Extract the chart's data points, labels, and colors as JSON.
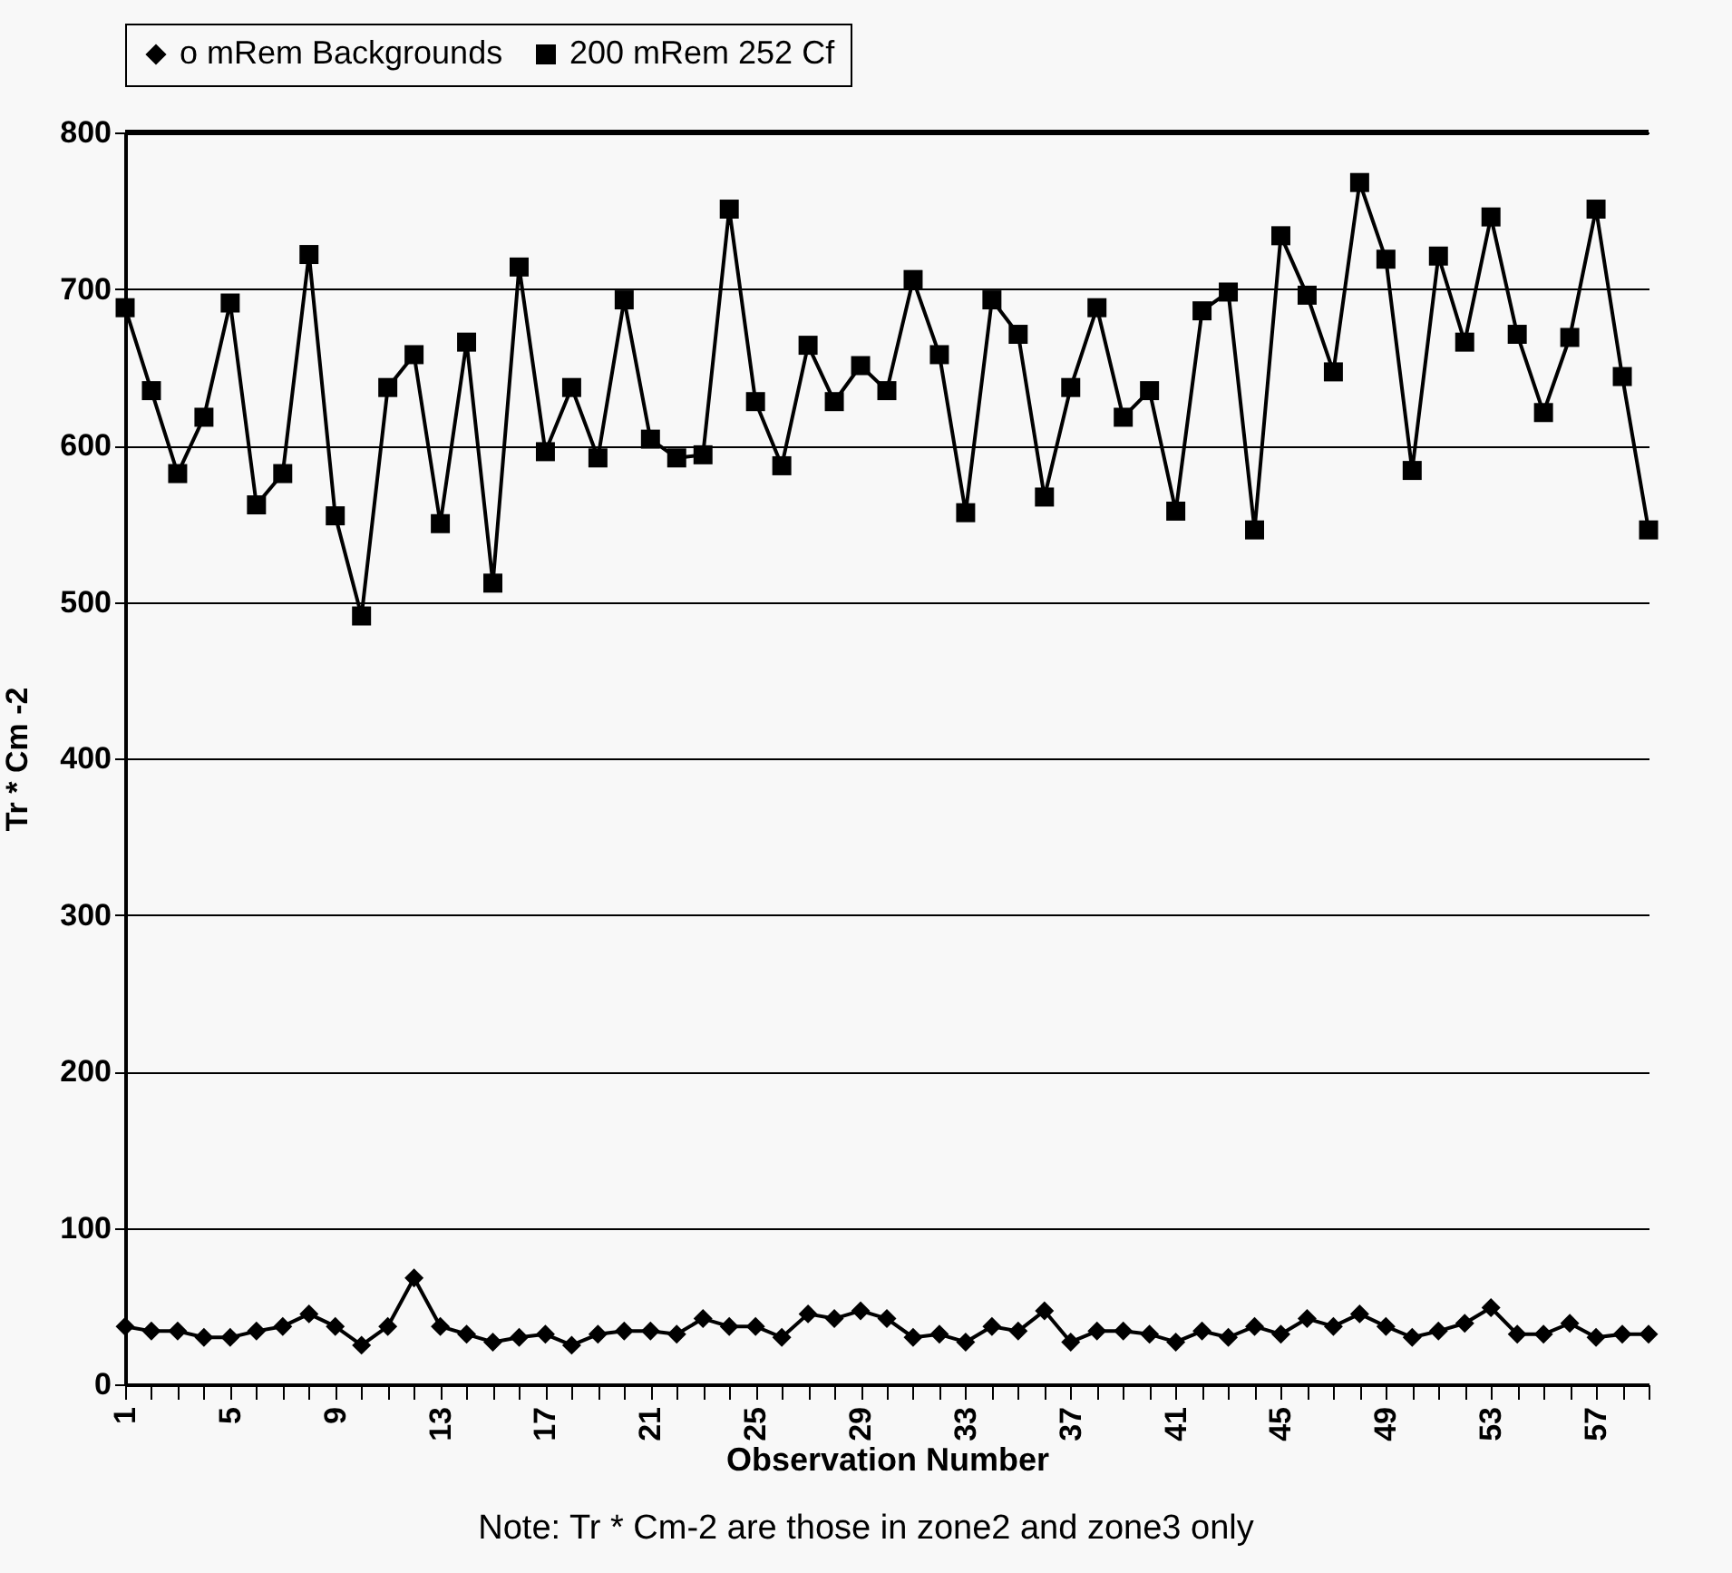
{
  "chart_data": {
    "type": "line",
    "xlabel": "Observation Number",
    "ylabel": "Tr * Cm -2",
    "annotations": [
      "Note: Tr * Cm-2 are those in zone2 and zone3 only"
    ],
    "categories": [
      "1",
      null,
      null,
      null,
      "5",
      null,
      null,
      null,
      "9",
      null,
      null,
      null,
      "13",
      null,
      null,
      null,
      "17",
      null,
      null,
      null,
      "21",
      null,
      null,
      null,
      "25",
      null,
      null,
      null,
      "29",
      null,
      null,
      null,
      "33",
      null,
      null,
      null,
      "37",
      null,
      null,
      null,
      "41",
      null,
      null,
      null,
      "45",
      null,
      null,
      null,
      "49",
      null,
      null,
      null,
      "53",
      null,
      null,
      null,
      "57",
      null,
      null
    ],
    "series": [
      {
        "name": "o mRem Backgrounds",
        "color": "#000000",
        "marker": "diamond",
        "values": [
          37,
          34,
          34,
          30,
          30,
          34,
          37,
          45,
          37,
          25,
          37,
          68,
          37,
          32,
          27,
          30,
          32,
          25,
          32,
          34,
          34,
          32,
          42,
          37,
          37,
          30,
          45,
          42,
          47,
          42,
          30,
          32,
          27,
          37,
          34,
          47,
          27,
          34,
          34,
          32,
          27,
          34,
          30,
          37,
          32,
          42,
          37,
          45,
          37,
          30,
          34,
          39,
          49,
          32,
          32,
          39,
          30,
          32,
          32
        ]
      },
      {
        "name": "200 mRem 252 Cf",
        "color": "#000000",
        "marker": "square",
        "values": [
          688,
          635,
          582,
          618,
          691,
          562,
          582,
          722,
          555,
          491,
          637,
          658,
          550,
          666,
          512,
          714,
          596,
          637,
          592,
          693,
          604,
          592,
          594,
          751,
          628,
          587,
          664,
          628,
          651,
          635,
          706,
          658,
          557,
          693,
          671,
          567,
          637,
          688,
          618,
          635,
          558,
          686,
          698,
          546,
          734,
          696,
          647,
          768,
          719,
          584,
          721,
          666,
          746,
          671,
          621,
          669,
          751,
          644,
          546
        ]
      }
    ],
    "ylim": [
      0,
      800
    ],
    "yticks": [
      0,
      100,
      200,
      300,
      400,
      500,
      600,
      700,
      800
    ],
    "grid": "y",
    "legend": "top",
    "line_style": "solid"
  }
}
